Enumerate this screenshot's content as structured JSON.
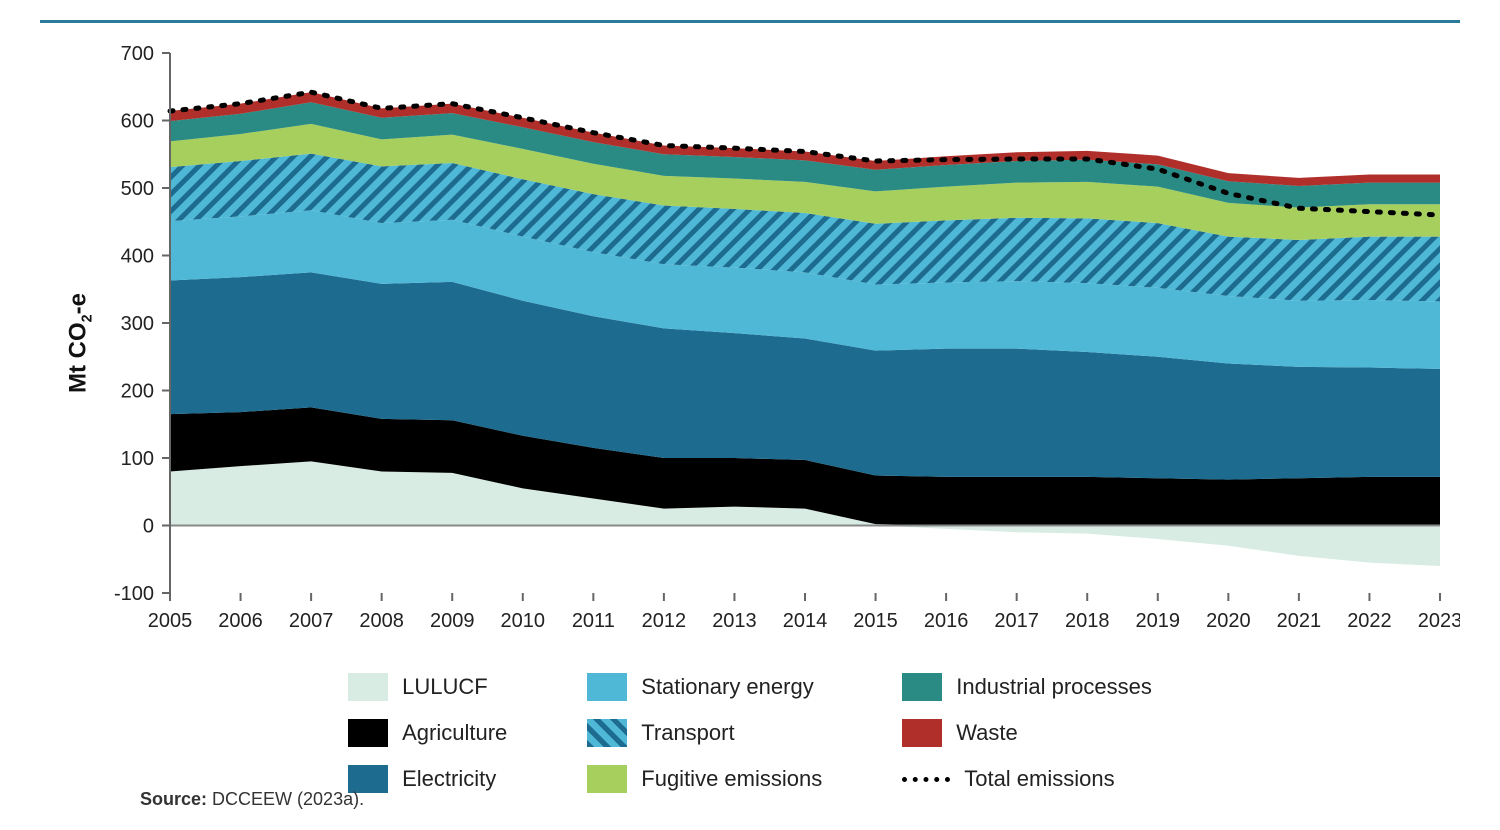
{
  "top_rule_color": "#2a7a9c",
  "source_label": "Source:",
  "source_text": "DCCEEW (2023a).",
  "chart": {
    "type": "stacked-area",
    "y_axis_label_html": "Mt CO<sub>2</sub>-e",
    "background_color": "#ffffff",
    "plot_background": "#ffffff",
    "axis_color": "#666666",
    "zero_line_color": "#888888",
    "tick_font_size": 20,
    "axis_label_font_size": 24,
    "ylim": [
      -100,
      700
    ],
    "ytick_step": 100,
    "yticks": [
      -100,
      0,
      100,
      200,
      300,
      400,
      500,
      600,
      700
    ],
    "years": [
      2005,
      2006,
      2007,
      2008,
      2009,
      2010,
      2011,
      2012,
      2013,
      2014,
      2015,
      2016,
      2017,
      2018,
      2019,
      2020,
      2021,
      2022,
      2023
    ],
    "series": [
      {
        "key": "lulucf",
        "label": "LULUCF",
        "color": "#d9ece4",
        "values": [
          80,
          88,
          95,
          80,
          78,
          55,
          40,
          25,
          28,
          25,
          2,
          -5,
          -10,
          -12,
          -20,
          -30,
          -45,
          -55,
          -60
        ]
      },
      {
        "key": "agriculture",
        "label": "Agriculture",
        "color": "#000000",
        "values": [
          85,
          80,
          80,
          78,
          78,
          78,
          75,
          75,
          72,
          72,
          72,
          72,
          72,
          72,
          70,
          68,
          70,
          72,
          72
        ]
      },
      {
        "key": "electricity",
        "label": "Electricity",
        "color": "#1d6b8f",
        "values": [
          198,
          200,
          200,
          200,
          205,
          200,
          195,
          192,
          185,
          180,
          185,
          190,
          190,
          185,
          180,
          172,
          165,
          162,
          160
        ]
      },
      {
        "key": "stationary",
        "label": "Stationary energy",
        "color": "#4fb8d6",
        "values": [
          88,
          90,
          92,
          90,
          92,
          95,
          95,
          95,
          97,
          98,
          98,
          98,
          100,
          102,
          102,
          100,
          98,
          100,
          100
        ]
      },
      {
        "key": "transport",
        "label": "Transport",
        "color": "#1d6b8f",
        "pattern": "hatch",
        "values": [
          80,
          82,
          84,
          84,
          84,
          85,
          86,
          87,
          87,
          88,
          90,
          92,
          94,
          96,
          96,
          88,
          90,
          94,
          96
        ]
      },
      {
        "key": "fugitive",
        "label": "Fugitive emissions",
        "color": "#a6cf5e",
        "values": [
          38,
          40,
          44,
          40,
          42,
          45,
          45,
          44,
          45,
          46,
          48,
          50,
          52,
          54,
          54,
          50,
          48,
          48,
          48
        ]
      },
      {
        "key": "industrial",
        "label": "Industrial processes",
        "color": "#2a8a84",
        "values": [
          30,
          30,
          32,
          32,
          32,
          32,
          32,
          32,
          32,
          32,
          32,
          32,
          32,
          33,
          33,
          32,
          32,
          32,
          32
        ]
      },
      {
        "key": "waste",
        "label": "Waste",
        "color": "#b12f2a",
        "values": [
          15,
          15,
          15,
          14,
          14,
          14,
          14,
          13,
          13,
          13,
          13,
          13,
          13,
          13,
          13,
          12,
          12,
          12,
          12
        ]
      }
    ],
    "total_line": {
      "label": "Total emissions",
      "color": "#000000",
      "style": "dotted",
      "width": 5,
      "values": [
        614,
        625,
        642,
        618,
        625,
        604,
        582,
        563,
        559,
        554,
        540,
        542,
        543,
        543,
        528,
        492,
        470,
        465,
        460
      ]
    },
    "legend_order": [
      "lulucf",
      "stationary",
      "industrial",
      "agriculture",
      "transport",
      "waste",
      "electricity",
      "fugitive",
      "__total__"
    ]
  }
}
